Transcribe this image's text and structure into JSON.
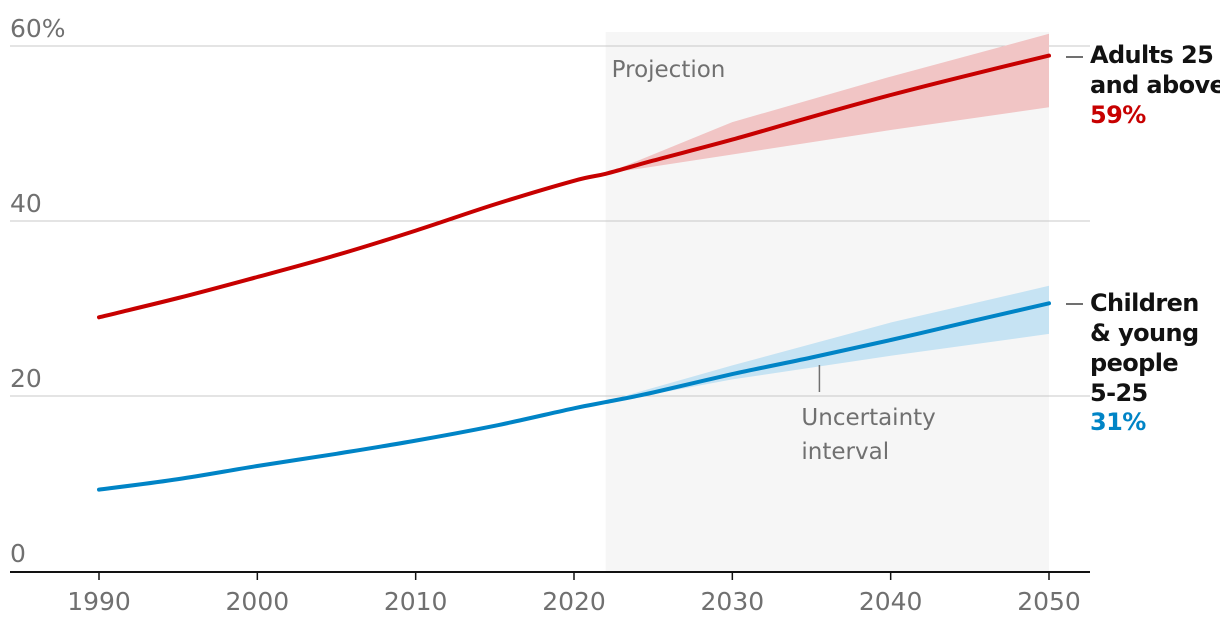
{
  "chart_data": {
    "type": "line",
    "title": "",
    "xlabel": "",
    "ylabel": "",
    "xlim": [
      1985,
      2052
    ],
    "ylim": [
      0,
      60
    ],
    "x_ticks": [
      1990,
      2000,
      2010,
      2020,
      2030,
      2040,
      2050
    ],
    "x_tick_labels": [
      "1990",
      "2000",
      "2010",
      "2020",
      "2030",
      "2040",
      "2050"
    ],
    "y_ticks": [
      0,
      20,
      40,
      60
    ],
    "y_tick_labels": [
      "0",
      "20",
      "40",
      "60%"
    ],
    "projection_start": 2022,
    "projection_end": 2050,
    "projection_label": "Projection",
    "uncertainty_label_lines": [
      "Uncertainty",
      "interval"
    ],
    "uncertainty_pointer_x": 2035.5,
    "series": [
      {
        "name": "Adults 25 and above",
        "name_lines": [
          "Adults 25",
          "and above"
        ],
        "value_label": "59%",
        "color": "#c70000",
        "band_color": "#f1c5c5",
        "x": [
          1990,
          1995,
          2000,
          2005,
          2010,
          2015,
          2020,
          2022,
          2025,
          2030,
          2035,
          2040,
          2045,
          2050
        ],
        "y": [
          29.0,
          31.2,
          33.6,
          36.1,
          38.9,
          41.9,
          44.6,
          45.4,
          46.9,
          49.3,
          51.9,
          54.4,
          56.7,
          58.9
        ],
        "band_x": [
          2022,
          2030,
          2040,
          2050
        ],
        "band_upper": [
          45.4,
          51.3,
          56.5,
          61.4
        ],
        "band_lower": [
          45.4,
          47.6,
          50.4,
          53.0
        ]
      },
      {
        "name": "Children & young people 5-25",
        "name_lines": [
          "Children",
          "& young",
          "people",
          "5-25"
        ],
        "value_label": "31%",
        "color": "#0084c6",
        "band_color": "#c6e3f3",
        "x": [
          1990,
          1995,
          2000,
          2005,
          2010,
          2015,
          2020,
          2022,
          2025,
          2030,
          2035,
          2040,
          2045,
          2050
        ],
        "y": [
          9.3,
          10.5,
          12.0,
          13.4,
          14.9,
          16.6,
          18.6,
          19.3,
          20.4,
          22.5,
          24.4,
          26.4,
          28.5,
          30.6
        ],
        "band_x": [
          2017,
          2022,
          2030,
          2040,
          2050
        ],
        "band_upper": [
          17.6,
          19.4,
          23.5,
          28.4,
          32.6
        ],
        "band_lower": [
          17.4,
          19.2,
          21.9,
          24.6,
          27.1
        ]
      }
    ]
  }
}
